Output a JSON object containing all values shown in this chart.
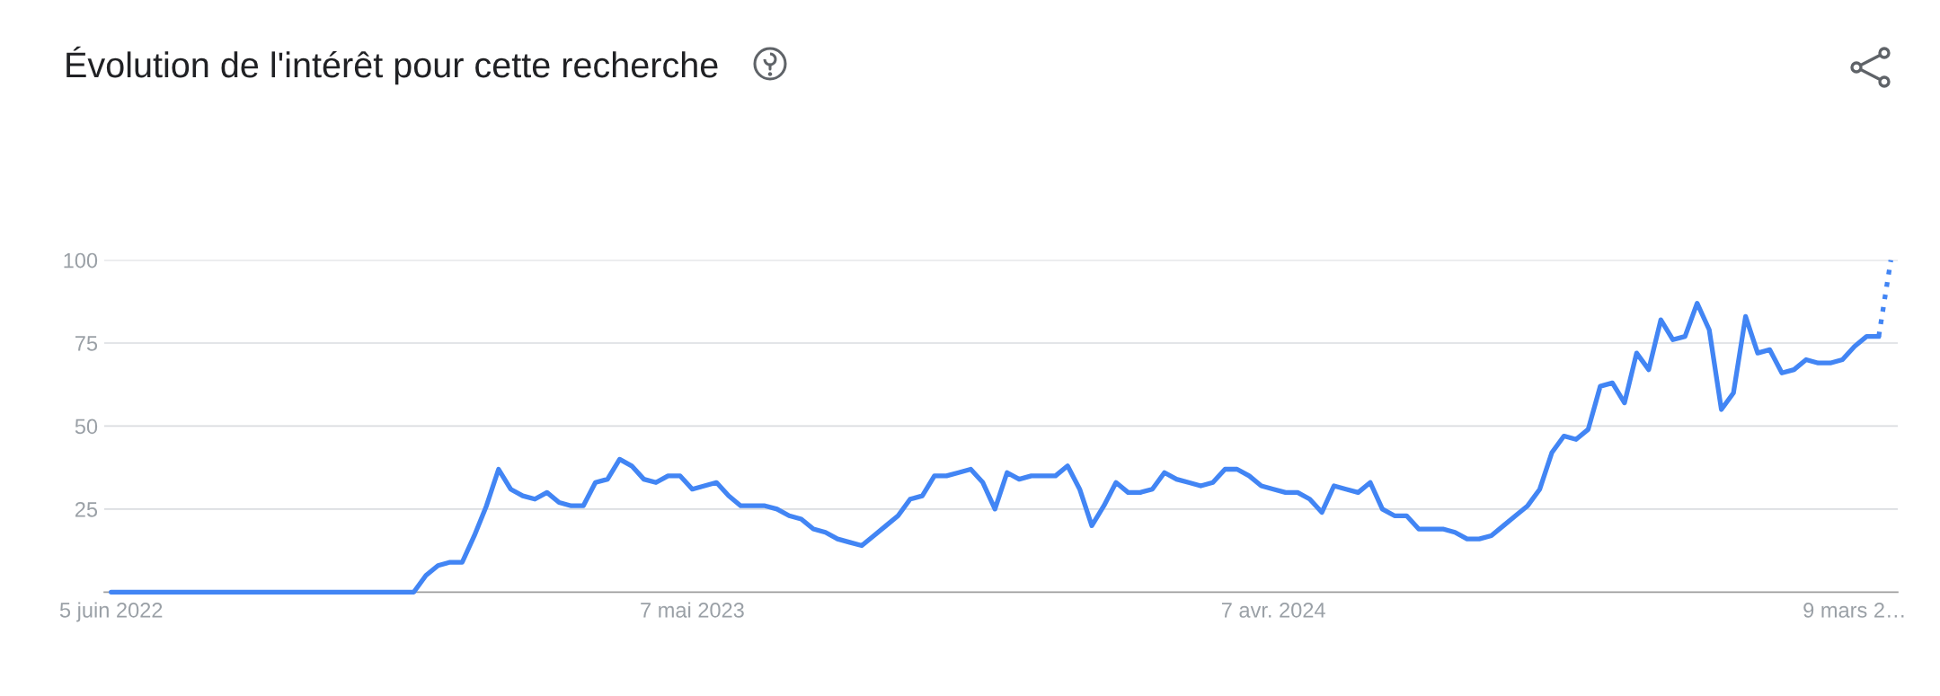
{
  "chart_data": {
    "type": "line",
    "title": "Évolution de l'intérêt pour cette recherche",
    "x": [
      "2022-06-05",
      "2022-06-12",
      "2022-06-19",
      "2022-06-26",
      "2022-07-03",
      "2022-07-10",
      "2022-07-17",
      "2022-07-24",
      "2022-07-31",
      "2022-08-07",
      "2022-08-14",
      "2022-08-21",
      "2022-08-28",
      "2022-09-04",
      "2022-09-11",
      "2022-09-18",
      "2022-09-25",
      "2022-10-02",
      "2022-10-09",
      "2022-10-16",
      "2022-10-23",
      "2022-10-30",
      "2022-11-06",
      "2022-11-13",
      "2022-11-20",
      "2022-11-27",
      "2022-12-04",
      "2022-12-11",
      "2022-12-18",
      "2022-12-25",
      "2023-01-01",
      "2023-01-08",
      "2023-01-15",
      "2023-01-22",
      "2023-01-29",
      "2023-02-05",
      "2023-02-12",
      "2023-02-19",
      "2023-02-26",
      "2023-03-05",
      "2023-03-12",
      "2023-03-19",
      "2023-03-26",
      "2023-04-02",
      "2023-04-09",
      "2023-04-16",
      "2023-04-23",
      "2023-04-30",
      "2023-05-07",
      "2023-05-14",
      "2023-05-21",
      "2023-05-28",
      "2023-06-04",
      "2023-06-11",
      "2023-06-18",
      "2023-06-25",
      "2023-07-02",
      "2023-07-09",
      "2023-07-16",
      "2023-07-23",
      "2023-07-30",
      "2023-08-06",
      "2023-08-13",
      "2023-08-20",
      "2023-08-27",
      "2023-09-03",
      "2023-09-10",
      "2023-09-17",
      "2023-09-24",
      "2023-10-01",
      "2023-10-08",
      "2023-10-15",
      "2023-10-22",
      "2023-10-29",
      "2023-11-05",
      "2023-11-12",
      "2023-11-19",
      "2023-11-26",
      "2023-12-03",
      "2023-12-10",
      "2023-12-17",
      "2023-12-24",
      "2023-12-31",
      "2024-01-07",
      "2024-01-14",
      "2024-01-21",
      "2024-01-28",
      "2024-02-04",
      "2024-02-11",
      "2024-02-18",
      "2024-02-25",
      "2024-03-03",
      "2024-03-10",
      "2024-03-17",
      "2024-03-24",
      "2024-03-31",
      "2024-04-07",
      "2024-04-14",
      "2024-04-21",
      "2024-04-28",
      "2024-05-05",
      "2024-05-12",
      "2024-05-19",
      "2024-05-26",
      "2024-06-02",
      "2024-06-09",
      "2024-06-16",
      "2024-06-23",
      "2024-06-30",
      "2024-07-07",
      "2024-07-14",
      "2024-07-21",
      "2024-07-28",
      "2024-08-04",
      "2024-08-11",
      "2024-08-18",
      "2024-08-25",
      "2024-09-01",
      "2024-09-08",
      "2024-09-15",
      "2024-09-22",
      "2024-09-29",
      "2024-10-06",
      "2024-10-13",
      "2024-10-20",
      "2024-10-27",
      "2024-11-03",
      "2024-11-10",
      "2024-11-17",
      "2024-11-24",
      "2024-12-01",
      "2024-12-08",
      "2024-12-15",
      "2024-12-22",
      "2024-12-29",
      "2025-01-05",
      "2025-01-12",
      "2025-01-19",
      "2025-01-26",
      "2025-02-02",
      "2025-02-09",
      "2025-02-16",
      "2025-02-23",
      "2025-03-02",
      "2025-03-09",
      "2025-03-16",
      "2025-03-23"
    ],
    "series": [
      {
        "color": "#4285f4",
        "values": [
          0,
          0,
          0,
          0,
          0,
          0,
          0,
          0,
          0,
          0,
          0,
          0,
          0,
          0,
          0,
          0,
          0,
          0,
          0,
          0,
          0,
          0,
          0,
          0,
          0,
          0,
          5,
          8,
          9,
          9,
          17,
          26,
          37,
          31,
          29,
          28,
          30,
          27,
          26,
          26,
          33,
          34,
          40,
          38,
          34,
          33,
          35,
          35,
          31,
          32,
          33,
          29,
          26,
          26,
          26,
          25,
          23,
          22,
          19,
          18,
          16,
          15,
          14,
          17,
          20,
          23,
          28,
          29,
          35,
          35,
          36,
          37,
          33,
          25,
          36,
          34,
          35,
          35,
          35,
          38,
          31,
          20,
          26,
          33,
          30,
          30,
          31,
          36,
          34,
          33,
          32,
          33,
          37,
          37,
          35,
          32,
          31,
          30,
          30,
          28,
          24,
          32,
          31,
          30,
          33,
          25,
          23,
          23,
          19,
          19,
          19,
          18,
          16,
          16,
          17,
          20,
          23,
          26,
          31,
          42,
          47,
          46,
          49,
          62,
          63,
          57,
          72,
          67,
          82,
          76,
          77,
          87,
          79,
          55,
          60,
          83,
          72,
          73,
          66,
          67,
          70,
          69,
          69,
          70,
          74,
          77,
          77
        ]
      },
      {
        "color": "#4285f4",
        "x": [
          "2025-03-23",
          "2025-03-30"
        ],
        "values": [
          77,
          100
        ],
        "line_style": "dotted"
      }
    ],
    "xlim": [
      "2022-06-01",
      "2025-04-03"
    ],
    "xticks": [
      {
        "value": "2022-06-05",
        "label": "5 juin 2022"
      },
      {
        "value": "2023-05-07",
        "label": "7 mai 2023"
      },
      {
        "value": "2024-04-07",
        "label": "7 avr. 2024"
      },
      {
        "value": "2025-03-09",
        "label": "9 mars 2…"
      }
    ],
    "ylim": [
      0,
      100
    ],
    "yticks": [
      25,
      50,
      75,
      100
    ],
    "grid": "y"
  }
}
